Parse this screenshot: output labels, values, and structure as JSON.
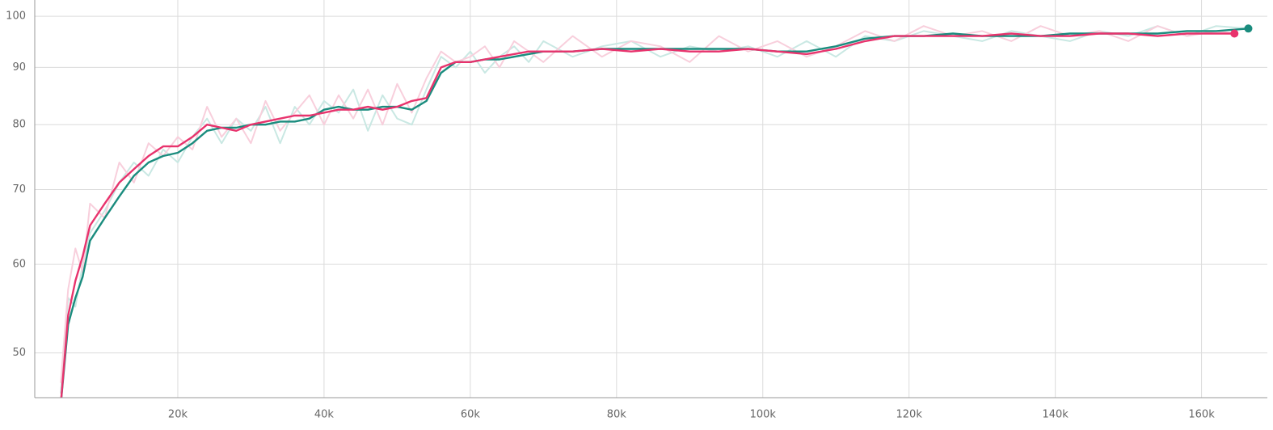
{
  "chart_data": {
    "type": "line",
    "y_scale": "log",
    "grid": true,
    "xlim": [
      440,
      169000
    ],
    "ylim": [
      45.6,
      103.4
    ],
    "xticks": [
      {
        "value": 20000,
        "label": "20k"
      },
      {
        "value": 40000,
        "label": "40k"
      },
      {
        "value": 60000,
        "label": "60k"
      },
      {
        "value": 80000,
        "label": "80k"
      },
      {
        "value": 100000,
        "label": "100k"
      },
      {
        "value": 120000,
        "label": "120k"
      },
      {
        "value": 140000,
        "label": "140k"
      },
      {
        "value": 160000,
        "label": "160k"
      }
    ],
    "yticks": [
      50,
      60,
      70,
      80,
      90,
      100
    ],
    "series": [
      {
        "color": "#c9e8e3",
        "line_width": 2,
        "end_marker": false,
        "x": [
          4000,
          5000,
          6000,
          7000,
          8000,
          10000,
          12000,
          14000,
          16000,
          18000,
          20000,
          22000,
          24000,
          26000,
          28000,
          30000,
          32000,
          34000,
          36000,
          38000,
          40000,
          42000,
          44000,
          46000,
          48000,
          50000,
          52000,
          54000,
          56000,
          58000,
          60000,
          62000,
          64000,
          66000,
          68000,
          70000,
          74000,
          78000,
          82000,
          86000,
          90000,
          94000,
          98000,
          102000,
          106000,
          110000,
          114000,
          118000,
          122000,
          126000,
          130000,
          134000,
          138000,
          142000,
          146000,
          150000,
          154000,
          158000,
          162000,
          166400
        ],
        "values": [
          46,
          56,
          55,
          60,
          64,
          67,
          71,
          74,
          72,
          76,
          74,
          78,
          81,
          77,
          81,
          79,
          83,
          77,
          83,
          80,
          84,
          82,
          86,
          79,
          85,
          81,
          80,
          86,
          92,
          90,
          93,
          89,
          92,
          94,
          91,
          95,
          92,
          94,
          95,
          92,
          94,
          93,
          94,
          92,
          95,
          92,
          96,
          95,
          97,
          96,
          95,
          97,
          96,
          95,
          97,
          96,
          98,
          96,
          98,
          97.5
        ]
      },
      {
        "color": "#f8cfdc",
        "line_width": 2,
        "end_marker": false,
        "x": [
          4000,
          5000,
          6000,
          7000,
          8000,
          10000,
          12000,
          14000,
          16000,
          18000,
          20000,
          22000,
          24000,
          26000,
          28000,
          30000,
          32000,
          34000,
          36000,
          38000,
          40000,
          42000,
          44000,
          46000,
          48000,
          50000,
          52000,
          54000,
          56000,
          58000,
          60000,
          62000,
          64000,
          66000,
          68000,
          70000,
          74000,
          78000,
          82000,
          86000,
          90000,
          94000,
          98000,
          102000,
          106000,
          110000,
          114000,
          118000,
          122000,
          126000,
          130000,
          134000,
          138000,
          142000,
          146000,
          150000,
          154000,
          158000,
          162000,
          164500
        ],
        "values": [
          47,
          57,
          62,
          59,
          68,
          66,
          74,
          71,
          77,
          75,
          78,
          76,
          83,
          78,
          81,
          77,
          84,
          79,
          82,
          85,
          80,
          85,
          81,
          86,
          80,
          87,
          82,
          88,
          93,
          91,
          92,
          94,
          90,
          95,
          93,
          91,
          96,
          92,
          95,
          94,
          91,
          96,
          93,
          95,
          92,
          94,
          97,
          95,
          98,
          96,
          97,
          95,
          98,
          96,
          97,
          95,
          98,
          96,
          97,
          96.5
        ]
      },
      {
        "color": "#1a8c7e",
        "line_width": 2.4,
        "end_marker": true,
        "x": [
          4000,
          5000,
          6000,
          7000,
          8000,
          10000,
          12000,
          14000,
          16000,
          18000,
          20000,
          22000,
          24000,
          26000,
          28000,
          30000,
          32000,
          34000,
          36000,
          38000,
          40000,
          42000,
          44000,
          46000,
          48000,
          50000,
          52000,
          54000,
          56000,
          58000,
          60000,
          62000,
          64000,
          66000,
          68000,
          70000,
          74000,
          78000,
          82000,
          86000,
          90000,
          94000,
          98000,
          102000,
          106000,
          110000,
          114000,
          118000,
          122000,
          126000,
          130000,
          134000,
          138000,
          142000,
          146000,
          150000,
          154000,
          158000,
          162000,
          166400
        ],
        "values": [
          45,
          53,
          56,
          58.5,
          63,
          66,
          69,
          72,
          74,
          75,
          75.5,
          77,
          79,
          79.5,
          79.5,
          80,
          80,
          80.5,
          80.5,
          81,
          82.5,
          83,
          82.5,
          82.5,
          83,
          83,
          82.5,
          84,
          89,
          91,
          91,
          91.5,
          91.5,
          92,
          92.5,
          93,
          93,
          93.5,
          93.5,
          93.5,
          93.5,
          93.5,
          93.5,
          93,
          93,
          94,
          95.5,
          96,
          96,
          96.5,
          96,
          96,
          96,
          96.5,
          96.5,
          96.5,
          96.5,
          97,
          97,
          97.5
        ]
      },
      {
        "color": "#e8336d",
        "line_width": 2.4,
        "end_marker": true,
        "x": [
          4000,
          5000,
          6000,
          7000,
          8000,
          10000,
          12000,
          14000,
          16000,
          18000,
          20000,
          22000,
          24000,
          26000,
          28000,
          30000,
          32000,
          34000,
          36000,
          38000,
          40000,
          42000,
          44000,
          46000,
          48000,
          50000,
          52000,
          54000,
          56000,
          58000,
          60000,
          62000,
          64000,
          66000,
          68000,
          70000,
          74000,
          78000,
          82000,
          86000,
          90000,
          94000,
          98000,
          102000,
          106000,
          110000,
          114000,
          118000,
          122000,
          126000,
          130000,
          134000,
          138000,
          142000,
          146000,
          150000,
          154000,
          158000,
          162000,
          164500
        ],
        "values": [
          45,
          54,
          58,
          61,
          65,
          68,
          71,
          73,
          75,
          76.5,
          76.5,
          78,
          80,
          79.5,
          79,
          80,
          80.5,
          81,
          81.5,
          81.5,
          82,
          82.5,
          82.5,
          83,
          82.5,
          83,
          84,
          84.5,
          90,
          91,
          91,
          91.5,
          92,
          92.5,
          93,
          93,
          93,
          93.5,
          93,
          93.5,
          93,
          93,
          93.5,
          93,
          92.5,
          93.5,
          95,
          96,
          96,
          96,
          96,
          96.5,
          96,
          96,
          96.5,
          96.5,
          96,
          96.5,
          96.5,
          96.5
        ]
      }
    ]
  }
}
